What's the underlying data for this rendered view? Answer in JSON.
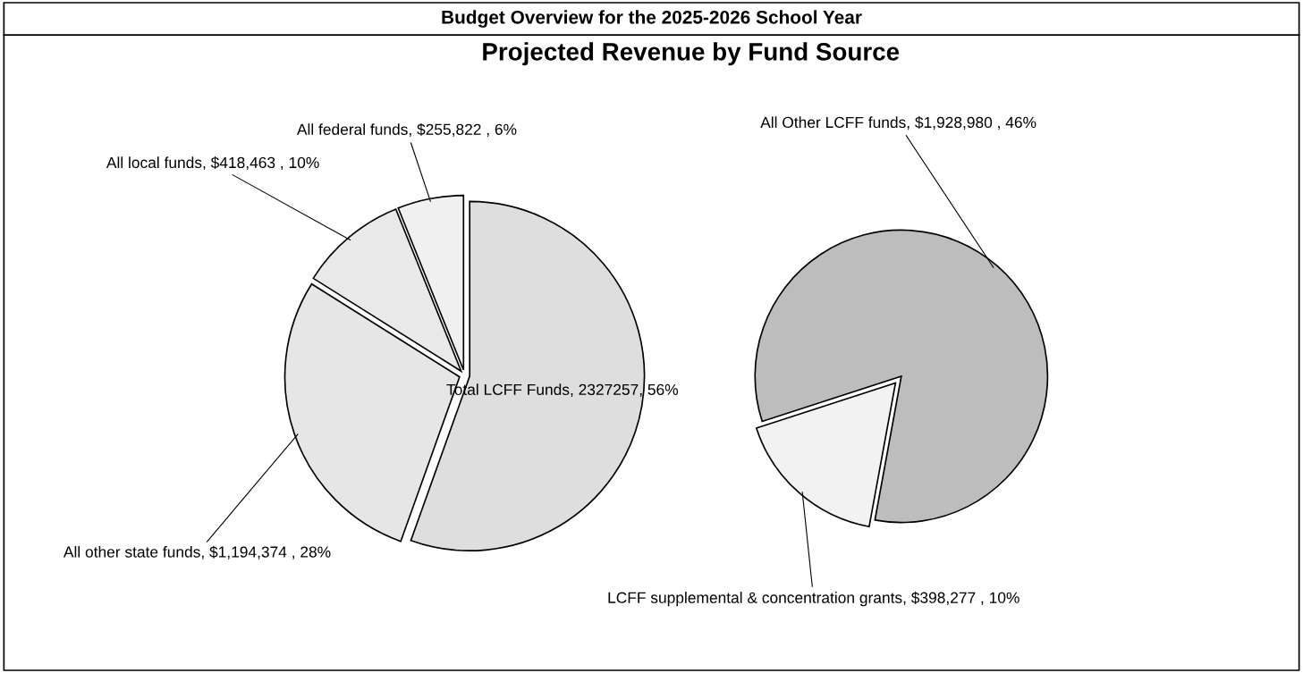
{
  "chart_data": [
    {
      "type": "pie",
      "title": "Budget Overview for the 2025-2026 School Year",
      "subtitle": "Projected Revenue by Fund Source",
      "categories": [
        "Total LCFF Funds",
        "All other state funds",
        "All local funds",
        "All federal funds"
      ],
      "values": [
        2327257,
        1194374,
        418463,
        255822
      ],
      "value_labels": [
        "2327257, 56%",
        "$1,194,374 , 28%",
        "$418,463 , 10%",
        "$255,822 , 6%"
      ],
      "colors": [
        "#dedede",
        "#e6e6e6",
        "#e9e9e9",
        "#f0f0f0"
      ]
    },
    {
      "type": "pie",
      "categories": [
        "LCFF supplemental & concentration grants",
        "All Other LCFF funds"
      ],
      "values": [
        398277,
        1928980
      ],
      "value_labels": [
        "$398,277 , 10%",
        "$1,928,980 , 46%"
      ],
      "colors": [
        "#f2f2f2",
        "#bdbdbd"
      ]
    }
  ]
}
